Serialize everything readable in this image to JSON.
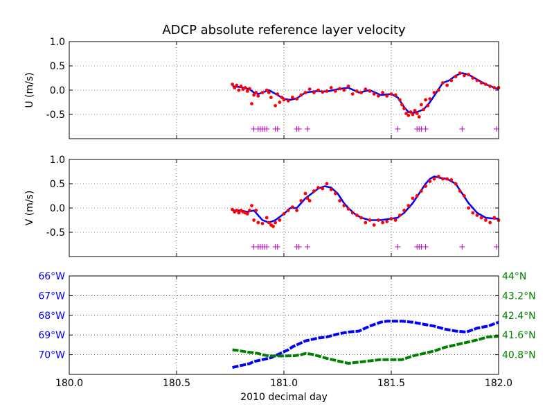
{
  "chart_data": [
    {
      "type": "scatter",
      "title": "ADCP absolute reference layer velocity",
      "ylabel": "U (m/s)",
      "xlim": [
        180.0,
        182.0
      ],
      "ylim": [
        -1.0,
        1.0
      ],
      "x_ticks": [
        "180.0",
        "180.5",
        "181.0",
        "181.5",
        "182.0"
      ],
      "y_ticks": [
        "1.0",
        "0.5",
        "0.0",
        "-0.5"
      ],
      "y_tick_values": [
        1.0,
        0.5,
        0.0,
        -0.5
      ],
      "grid": true,
      "colors": {
        "points": "#ff0000",
        "smooth": "#0000ff",
        "flags": "#bf00bf"
      },
      "flag_y": -0.8,
      "flags_x": [
        180.86,
        180.88,
        180.89,
        180.9,
        180.91,
        180.92,
        180.96,
        180.97,
        181.06,
        181.07,
        181.11,
        181.53,
        181.62,
        181.63,
        181.64,
        181.66,
        181.83,
        181.99
      ],
      "smooth_series": {
        "x": [
          180.76,
          180.8,
          180.84,
          180.86,
          180.88,
          180.9,
          180.93,
          180.97,
          181.0,
          181.03,
          181.06,
          181.1,
          181.15,
          181.2,
          181.25,
          181.3,
          181.35,
          181.4,
          181.45,
          181.5,
          181.53,
          181.56,
          181.58,
          181.6,
          181.62,
          181.65,
          181.68,
          181.71,
          181.74,
          181.77,
          181.8,
          181.83,
          181.86,
          181.9,
          181.94,
          181.98,
          182.0
        ],
        "y": [
          0.08,
          0.06,
          0.02,
          -0.05,
          -0.08,
          -0.05,
          0.0,
          -0.1,
          -0.18,
          -0.2,
          -0.17,
          -0.05,
          -0.02,
          -0.03,
          0.02,
          0.05,
          -0.05,
          0.0,
          -0.1,
          -0.08,
          -0.15,
          -0.35,
          -0.45,
          -0.47,
          -0.45,
          -0.4,
          -0.25,
          -0.05,
          0.15,
          0.2,
          0.3,
          0.35,
          0.32,
          0.22,
          0.12,
          0.05,
          0.02
        ]
      },
      "scatter_series": {
        "x": [
          180.76,
          180.77,
          180.78,
          180.79,
          180.8,
          180.81,
          180.82,
          180.83,
          180.84,
          180.85,
          180.86,
          180.87,
          180.88,
          180.9,
          180.92,
          180.93,
          180.94,
          180.96,
          180.97,
          180.98,
          180.99,
          181.0,
          181.02,
          181.04,
          181.06,
          181.08,
          181.1,
          181.12,
          181.14,
          181.16,
          181.18,
          181.2,
          181.22,
          181.24,
          181.26,
          181.28,
          181.3,
          181.32,
          181.34,
          181.36,
          181.38,
          181.4,
          181.42,
          181.44,
          181.46,
          181.48,
          181.5,
          181.52,
          181.54,
          181.55,
          181.56,
          181.57,
          181.58,
          181.59,
          181.6,
          181.61,
          181.62,
          181.63,
          181.64,
          181.65,
          181.66,
          181.67,
          181.68,
          181.7,
          181.72,
          181.74,
          181.76,
          181.78,
          181.8,
          181.82,
          181.84,
          181.86,
          181.88,
          181.9,
          181.92,
          181.94,
          181.96,
          181.98,
          182.0
        ],
        "y": [
          0.12,
          0.05,
          0.1,
          0.0,
          0.08,
          0.02,
          0.05,
          -0.02,
          0.03,
          -0.28,
          -0.1,
          -0.05,
          -0.12,
          -0.05,
          0.0,
          -0.05,
          -0.15,
          -0.32,
          -0.08,
          -0.25,
          -0.15,
          -0.2,
          -0.22,
          -0.15,
          -0.18,
          -0.1,
          -0.05,
          0.02,
          -0.05,
          0.0,
          -0.04,
          -0.02,
          0.05,
          -0.02,
          0.03,
          0.0,
          0.08,
          -0.08,
          -0.02,
          -0.05,
          0.02,
          -0.02,
          -0.08,
          -0.12,
          -0.05,
          -0.12,
          -0.08,
          -0.1,
          -0.2,
          -0.3,
          -0.38,
          -0.48,
          -0.52,
          -0.45,
          -0.5,
          -0.42,
          -0.48,
          -0.55,
          -0.3,
          -0.4,
          -0.2,
          -0.32,
          -0.18,
          -0.05,
          0.0,
          0.15,
          0.1,
          0.2,
          0.28,
          0.35,
          0.3,
          0.32,
          0.25,
          0.2,
          0.15,
          0.12,
          0.08,
          0.05,
          0.05
        ]
      }
    },
    {
      "type": "scatter",
      "ylabel": "V (m/s)",
      "xlim": [
        180.0,
        182.0
      ],
      "ylim": [
        -1.0,
        1.0
      ],
      "x_ticks": [
        "180.0",
        "180.5",
        "181.0",
        "181.5",
        "182.0"
      ],
      "y_ticks": [
        "1.0",
        "0.5",
        "0.0",
        "-0.5"
      ],
      "y_tick_values": [
        1.0,
        0.5,
        0.0,
        -0.5
      ],
      "grid": true,
      "colors": {
        "points": "#ff0000",
        "smooth": "#0000ff",
        "flags": "#bf00bf"
      },
      "flag_y": -0.8,
      "flags_x": [
        180.86,
        180.88,
        180.89,
        180.9,
        180.91,
        180.92,
        180.96,
        180.97,
        181.06,
        181.07,
        181.11,
        181.53,
        181.62,
        181.63,
        181.64,
        181.66,
        181.83,
        181.99
      ],
      "smooth_series": {
        "x": [
          180.76,
          180.8,
          180.83,
          180.86,
          180.88,
          180.9,
          180.93,
          180.96,
          181.0,
          181.03,
          181.06,
          181.1,
          181.13,
          181.16,
          181.19,
          181.22,
          181.25,
          181.28,
          181.3,
          181.33,
          181.36,
          181.4,
          181.45,
          181.5,
          181.53,
          181.56,
          181.6,
          181.63,
          181.66,
          181.68,
          181.7,
          181.73,
          181.76,
          181.8,
          181.83,
          181.86,
          181.9,
          181.94,
          181.98,
          182.0
        ],
        "y": [
          -0.05,
          -0.05,
          -0.08,
          -0.05,
          -0.15,
          -0.25,
          -0.3,
          -0.25,
          -0.12,
          0.0,
          0.0,
          0.2,
          0.3,
          0.4,
          0.45,
          0.42,
          0.3,
          0.1,
          0.0,
          -0.12,
          -0.2,
          -0.25,
          -0.25,
          -0.22,
          -0.2,
          -0.1,
          0.1,
          0.3,
          0.5,
          0.6,
          0.65,
          0.62,
          0.6,
          0.5,
          0.3,
          0.1,
          -0.1,
          -0.2,
          -0.22,
          -0.22
        ]
      },
      "scatter_series": {
        "x": [
          180.76,
          180.77,
          180.78,
          180.79,
          180.8,
          180.81,
          180.82,
          180.83,
          180.84,
          180.85,
          180.86,
          180.87,
          180.88,
          180.9,
          180.92,
          180.93,
          180.94,
          180.95,
          180.96,
          180.98,
          181.0,
          181.02,
          181.04,
          181.06,
          181.08,
          181.1,
          181.11,
          181.12,
          181.14,
          181.16,
          181.18,
          181.2,
          181.22,
          181.24,
          181.26,
          181.28,
          181.3,
          181.32,
          181.34,
          181.36,
          181.38,
          181.4,
          181.42,
          181.44,
          181.46,
          181.48,
          181.5,
          181.52,
          181.54,
          181.56,
          181.58,
          181.6,
          181.62,
          181.64,
          181.66,
          181.68,
          181.7,
          181.72,
          181.74,
          181.76,
          181.78,
          181.8,
          181.82,
          181.84,
          181.86,
          181.88,
          181.9,
          181.92,
          181.94,
          181.96,
          181.98,
          182.0
        ],
        "y": [
          -0.03,
          -0.08,
          -0.05,
          -0.1,
          -0.05,
          -0.08,
          -0.1,
          -0.12,
          -0.05,
          0.05,
          -0.25,
          -0.05,
          -0.3,
          -0.32,
          -0.2,
          -0.3,
          -0.35,
          -0.38,
          -0.3,
          -0.25,
          -0.12,
          -0.05,
          0.02,
          -0.05,
          0.15,
          0.3,
          0.2,
          0.15,
          0.35,
          0.42,
          0.4,
          0.5,
          0.38,
          0.3,
          0.15,
          0.05,
          -0.02,
          -0.1,
          -0.15,
          -0.2,
          -0.3,
          -0.25,
          -0.35,
          -0.25,
          -0.3,
          -0.28,
          -0.22,
          -0.25,
          -0.15,
          -0.05,
          0.05,
          0.2,
          0.25,
          0.35,
          0.45,
          0.55,
          0.6,
          0.65,
          0.6,
          0.6,
          0.58,
          0.5,
          0.35,
          0.25,
          0.0,
          -0.1,
          -0.15,
          -0.2,
          -0.25,
          -0.3,
          -0.2,
          -0.25
        ]
      }
    },
    {
      "type": "line",
      "xlabel": "2010 decimal day",
      "xlim": [
        180.0,
        182.0
      ],
      "x_ticks": [
        "180.0",
        "180.5",
        "181.0",
        "181.5",
        "182.0"
      ],
      "x_tick_values": [
        180.0,
        180.5,
        181.0,
        181.5,
        182.0
      ],
      "grid": true,
      "left_axis": {
        "label_color": "#0000ff",
        "ticks": [
          "66°W",
          "67°W",
          "68°W",
          "69°W",
          "70°W"
        ],
        "tick_values": [
          -66,
          -67,
          -68,
          -69,
          -70
        ],
        "ylim": [
          -71.0,
          -66.0
        ]
      },
      "right_axis": {
        "label_color": "#008000",
        "ticks": [
          "44°N",
          "43.2°N",
          "42.4°N",
          "41.6°N",
          "40.8°N"
        ],
        "tick_values": [
          44.0,
          43.2,
          42.4,
          41.6,
          40.8
        ],
        "ylim": [
          40.0,
          44.0
        ]
      },
      "series": [
        {
          "axis": "left",
          "color": "#0000ff",
          "x": [
            180.76,
            180.78,
            180.8,
            180.82,
            180.84,
            180.86,
            180.88,
            180.9,
            180.92,
            180.94,
            180.96,
            180.98,
            181.0,
            181.02,
            181.04,
            181.06,
            181.08,
            181.1,
            181.12,
            181.16,
            181.2,
            181.25,
            181.3,
            181.35,
            181.4,
            181.45,
            181.48,
            181.5,
            181.55,
            181.6,
            181.65,
            181.7,
            181.75,
            181.8,
            181.85,
            181.9,
            181.95,
            182.0
          ],
          "y": [
            -70.65,
            -70.6,
            -70.55,
            -70.5,
            -70.45,
            -70.35,
            -70.3,
            -70.25,
            -70.2,
            -70.15,
            -70.05,
            -69.95,
            -69.85,
            -69.75,
            -69.6,
            -69.5,
            -69.4,
            -69.3,
            -69.25,
            -69.15,
            -69.1,
            -68.95,
            -68.85,
            -68.8,
            -68.55,
            -68.35,
            -68.3,
            -68.3,
            -68.3,
            -68.35,
            -68.45,
            -68.55,
            -68.7,
            -68.8,
            -68.85,
            -68.65,
            -68.55,
            -68.35
          ]
        },
        {
          "axis": "right",
          "color": "#008000",
          "x": [
            180.76,
            180.78,
            180.8,
            180.82,
            180.84,
            180.86,
            180.88,
            180.9,
            180.93,
            180.96,
            181.0,
            181.05,
            181.08,
            181.1,
            181.13,
            181.16,
            181.2,
            181.25,
            181.3,
            181.35,
            181.4,
            181.45,
            181.5,
            181.55,
            181.6,
            181.65,
            181.7,
            181.75,
            181.8,
            181.85,
            181.9,
            181.95,
            182.0
          ],
          "y": [
            41.0,
            40.98,
            40.95,
            40.92,
            40.9,
            40.88,
            40.85,
            40.8,
            40.75,
            40.75,
            40.75,
            40.76,
            40.8,
            40.85,
            40.82,
            40.75,
            40.65,
            40.55,
            40.45,
            40.5,
            40.55,
            40.6,
            40.6,
            40.6,
            40.75,
            40.85,
            40.95,
            41.1,
            41.2,
            41.3,
            41.4,
            41.52,
            41.55
          ]
        }
      ]
    }
  ]
}
